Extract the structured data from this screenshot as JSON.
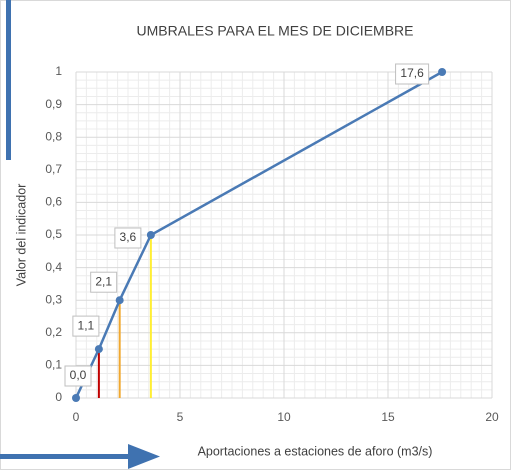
{
  "chart_data": {
    "type": "line",
    "title": "UMBRALES PARA EL MES DE DICIEMBRE",
    "x_label": "Aportaciones a estaciones de aforo (m3/s)",
    "y_label": "Valor del indicador",
    "x": [
      0,
      1.1,
      2.1,
      3.6,
      17.6
    ],
    "x_labels": [
      "0,0",
      "1,1",
      "2,1",
      "3,6",
      "17,6"
    ],
    "series": [
      {
        "color": "#4a7ab5",
        "values": [
          0,
          0.15,
          0.3,
          0.5,
          1
        ]
      }
    ],
    "drop_line_colors": [
      null,
      "#c00000",
      "#f0a830",
      "#ffee33",
      null
    ],
    "xlim": [
      0,
      20
    ],
    "xticks": [
      0,
      5,
      10,
      15,
      20
    ],
    "ylim": [
      0,
      1
    ],
    "yticks": [
      0,
      {
        "value": 0.1,
        "label": "0,1"
      },
      {
        "value": 0.2,
        "label": "0,2"
      },
      {
        "value": 0.3,
        "label": "0,3"
      },
      {
        "value": 0.4,
        "label": "0,4"
      },
      {
        "value": 0.5,
        "label": "0,5"
      },
      {
        "value": 0.6,
        "label": "0,6"
      },
      {
        "value": 0.7,
        "label": "0,7"
      },
      {
        "value": 0.8,
        "label": "0,8"
      },
      {
        "value": 0.9,
        "label": "0,9"
      },
      1
    ],
    "grid": true,
    "minor_grid": true
  }
}
